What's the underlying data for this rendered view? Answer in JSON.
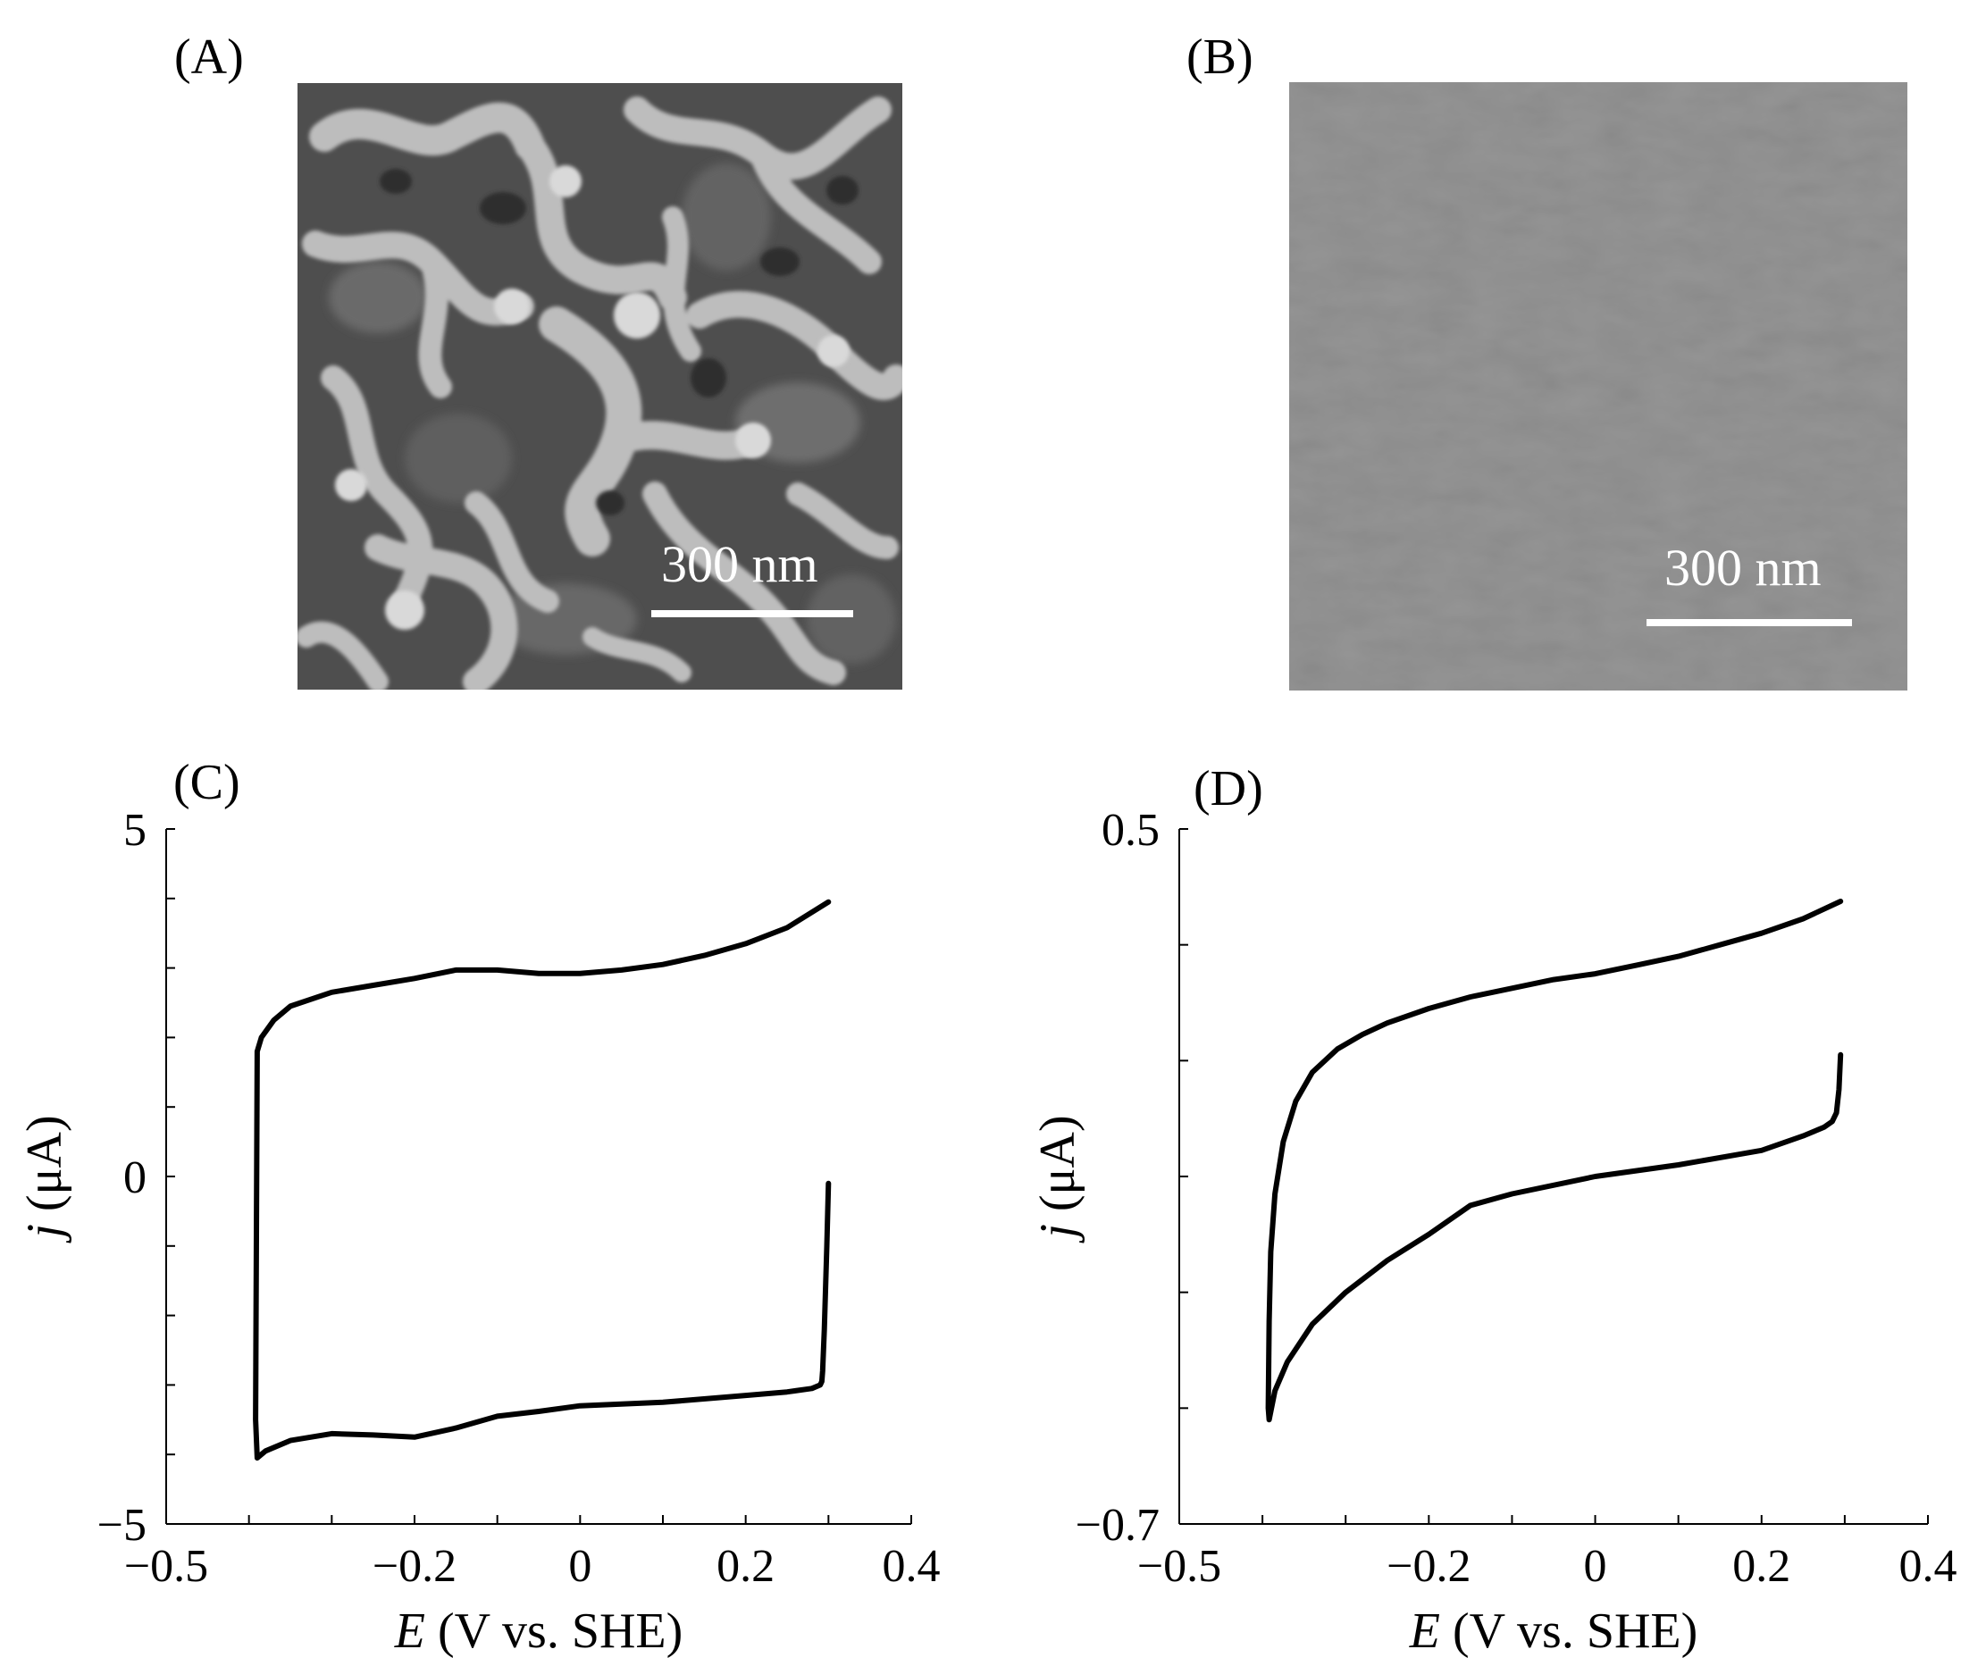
{
  "panels": {
    "A": {
      "label": "(A)",
      "scale_bar": "300 nm"
    },
    "B": {
      "label": "(B)",
      "scale_bar": "300 nm"
    },
    "C": {
      "label": "(C)"
    },
    "D": {
      "label": "(D)"
    }
  },
  "chart_data": [
    {
      "panel": "C",
      "type": "line",
      "xlabel_var": "E",
      "xlabel_unit": " (V vs. SHE)",
      "ylabel_var": "j",
      "ylabel_unit": " (μA)",
      "xlim": [
        -0.5,
        0.4
      ],
      "ylim": [
        -5,
        5
      ],
      "xticks": [
        -0.5,
        -0.2,
        0,
        0.2,
        0.4
      ],
      "xtick_labels": [
        "−0.5",
        "−0.2",
        "0",
        "0.2",
        "0.4"
      ],
      "yticks": [
        5,
        0,
        -5
      ],
      "ytick_labels": [
        "5",
        "0",
        "−5"
      ],
      "x_minor_step": 0.1,
      "y_minor_step": 1,
      "series": [
        {
          "x": [
            0.3,
            0.298,
            0.295,
            0.293,
            0.292,
            0.29,
            0.28,
            0.25,
            0.2,
            0.1,
            0.0,
            -0.05,
            -0.1,
            -0.15,
            -0.2,
            -0.25,
            -0.3,
            -0.35,
            -0.38,
            -0.39,
            -0.392,
            -0.39,
            -0.385,
            -0.37,
            -0.35,
            -0.3,
            -0.25,
            -0.2,
            -0.15,
            -0.1,
            -0.05,
            0.0,
            0.05,
            0.1,
            0.15,
            0.2,
            0.25,
            0.3
          ],
          "y": [
            -0.1,
            -1.0,
            -2.2,
            -2.8,
            -2.95,
            -3.0,
            -3.05,
            -3.1,
            -3.15,
            -3.25,
            -3.3,
            -3.38,
            -3.45,
            -3.62,
            -3.75,
            -3.72,
            -3.7,
            -3.8,
            -3.95,
            -4.05,
            -3.5,
            1.8,
            2.0,
            2.25,
            2.45,
            2.65,
            2.75,
            2.85,
            2.97,
            2.97,
            2.92,
            2.92,
            2.97,
            3.05,
            3.18,
            3.35,
            3.58,
            3.95
          ]
        }
      ]
    },
    {
      "panel": "D",
      "type": "line",
      "xlabel_var": "E",
      "xlabel_unit": " (V vs. SHE)",
      "ylabel_var": "j",
      "ylabel_unit": " (μA)",
      "xlim": [
        -0.5,
        0.4
      ],
      "ylim": [
        -0.7,
        0.5
      ],
      "xticks": [
        -0.5,
        -0.2,
        0,
        0.2,
        0.4
      ],
      "xtick_labels": [
        "−0.5",
        "−0.2",
        "0",
        "0.2",
        "0.4"
      ],
      "yticks": [
        0.5,
        -0.7
      ],
      "ytick_labels": [
        "0.5",
        "−0.7"
      ],
      "x_minor_step": 0.1,
      "y_minor_step": 0.2,
      "series": [
        {
          "x": [
            0.295,
            0.293,
            0.29,
            0.285,
            0.275,
            0.25,
            0.2,
            0.1,
            0.0,
            -0.1,
            -0.15,
            -0.2,
            -0.25,
            -0.3,
            -0.34,
            -0.37,
            -0.385,
            -0.392,
            -0.393,
            -0.392,
            -0.39,
            -0.385,
            -0.375,
            -0.36,
            -0.34,
            -0.31,
            -0.28,
            -0.25,
            -0.2,
            -0.15,
            -0.1,
            -0.05,
            0.0,
            0.05,
            0.1,
            0.15,
            0.2,
            0.25,
            0.295
          ],
          "y": [
            0.11,
            0.05,
            0.01,
            -0.005,
            -0.015,
            -0.03,
            -0.055,
            -0.08,
            -0.1,
            -0.13,
            -0.15,
            -0.2,
            -0.245,
            -0.3,
            -0.355,
            -0.42,
            -0.47,
            -0.52,
            -0.5,
            -0.35,
            -0.23,
            -0.13,
            -0.04,
            0.03,
            0.08,
            0.12,
            0.145,
            0.165,
            0.19,
            0.21,
            0.225,
            0.24,
            0.25,
            0.265,
            0.28,
            0.3,
            0.32,
            0.345,
            0.375
          ]
        }
      ]
    }
  ]
}
